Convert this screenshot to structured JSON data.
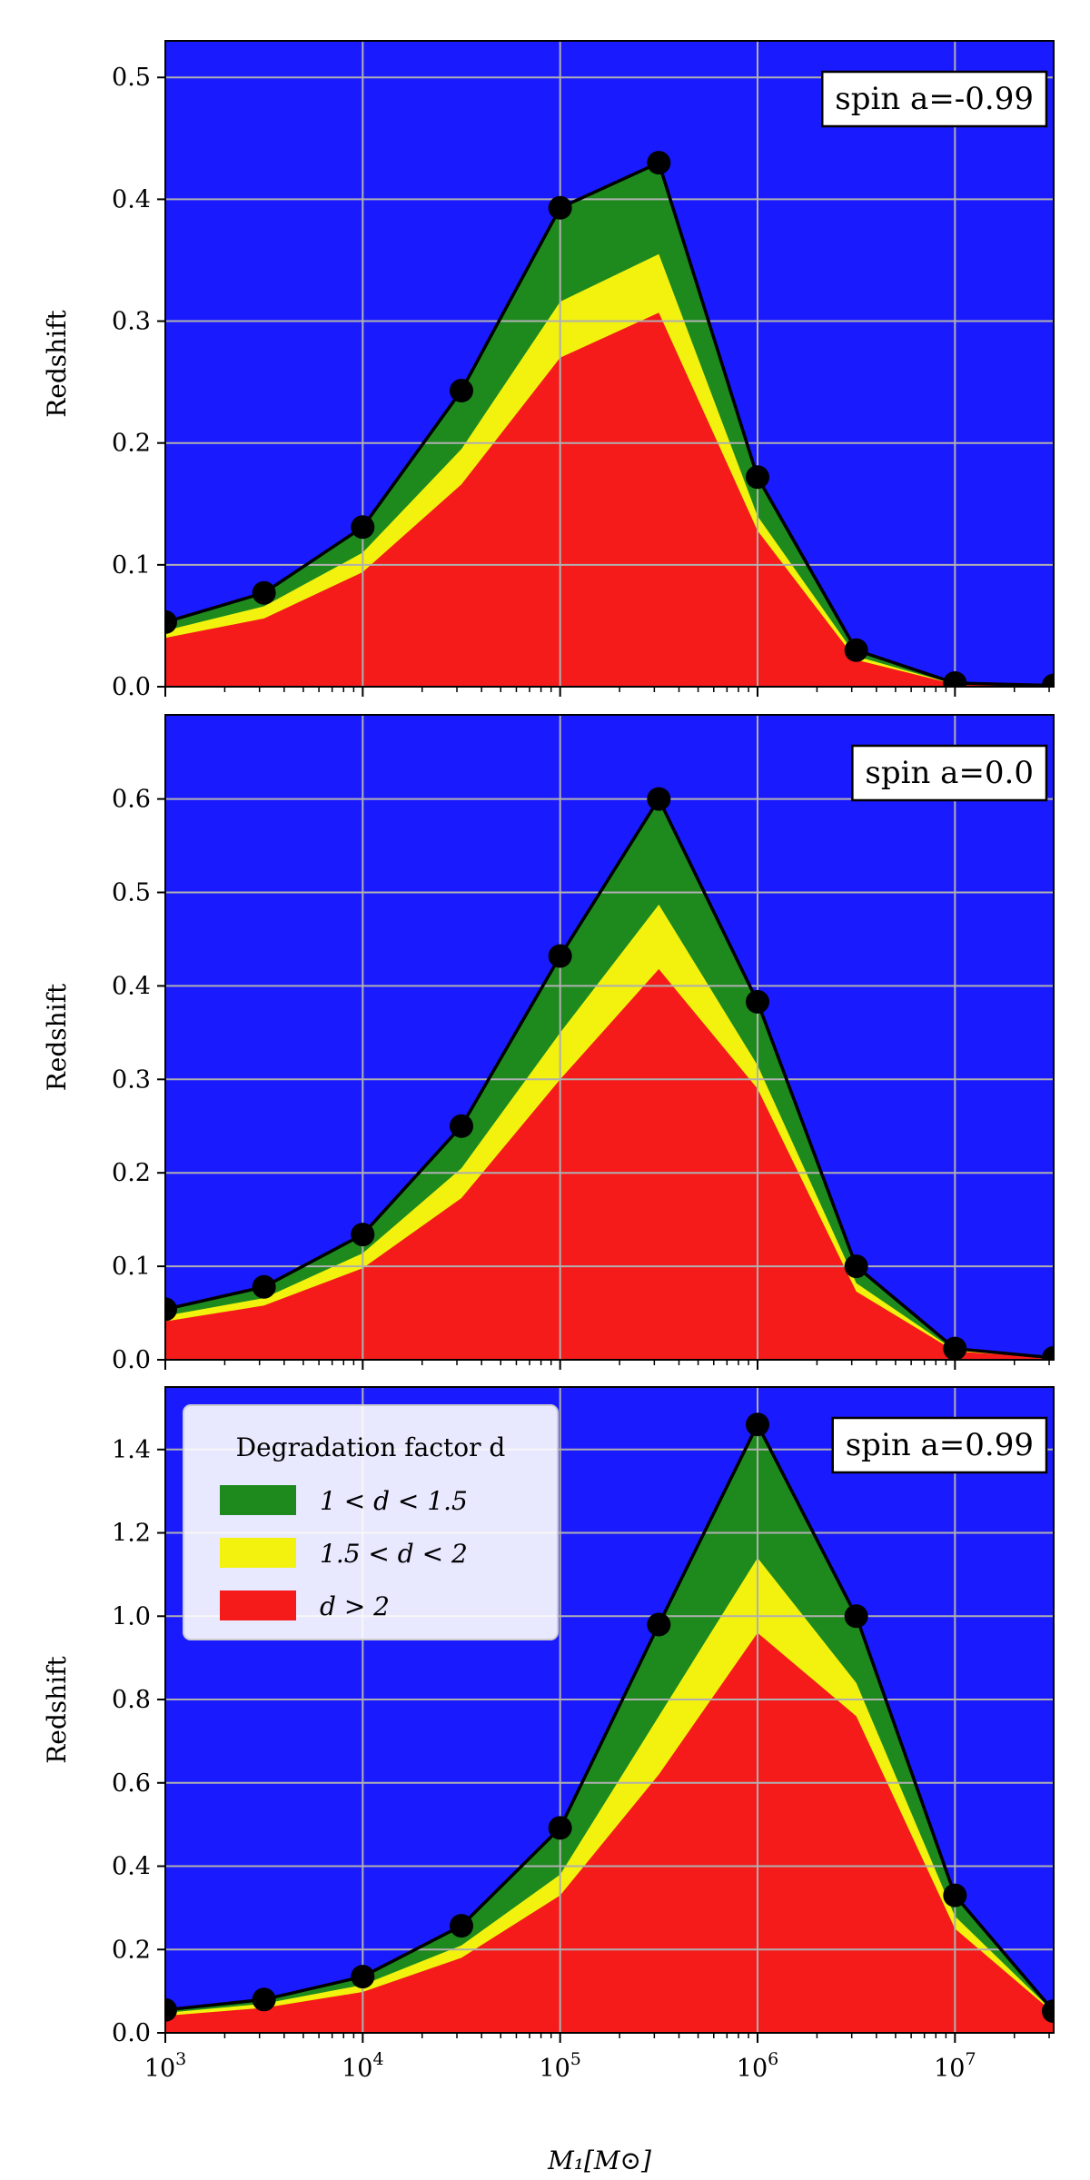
{
  "colors": {
    "background": "#1a1aff",
    "green": "#1e8a1e",
    "yellow": "#f2f20e",
    "red": "#f51b1b",
    "line": "#000000",
    "grid": "#b0b0b0"
  },
  "xlabel": "M₁[M⊙]",
  "ylabel": "Redshift",
  "chart_data": [
    {
      "type": "area",
      "annotation": "spin a=-0.99",
      "xscale": "log",
      "xlim": [
        1000,
        31622776
      ],
      "ylim": [
        0,
        0.53
      ],
      "yticks": [
        "0.0",
        "0.1",
        "0.2",
        "0.3",
        "0.4",
        "0.5"
      ],
      "ytick_values": [
        0,
        0.1,
        0.2,
        0.3,
        0.4,
        0.5
      ],
      "x": [
        1000,
        3162,
        10000,
        31623,
        100000,
        316228,
        1000000,
        3162278,
        10000000,
        31622777
      ],
      "series": [
        {
          "name": "1 < d < 1.5",
          "values": [
            0.053,
            0.077,
            0.131,
            0.243,
            0.393,
            0.43,
            0.172,
            0.03,
            0.003,
            0.001
          ]
        },
        {
          "name": "1.5 < d < 2",
          "values": [
            0.046,
            0.066,
            0.11,
            0.195,
            0.316,
            0.355,
            0.14,
            0.025,
            0.002,
            0.001
          ]
        },
        {
          "name": "d > 2",
          "values": [
            0.04,
            0.056,
            0.094,
            0.166,
            0.27,
            0.307,
            0.128,
            0.022,
            0.002,
            0.001
          ]
        }
      ]
    },
    {
      "type": "area",
      "annotation": "spin a=0.0",
      "xscale": "log",
      "xlim": [
        1000,
        31622776
      ],
      "ylim": [
        0,
        0.69
      ],
      "yticks": [
        "0.0",
        "0.1",
        "0.2",
        "0.3",
        "0.4",
        "0.5",
        "0.6"
      ],
      "ytick_values": [
        0,
        0.1,
        0.2,
        0.3,
        0.4,
        0.5,
        0.6
      ],
      "x": [
        1000,
        3162,
        10000,
        31623,
        100000,
        316228,
        1000000,
        3162278,
        10000000,
        31622777
      ],
      "series": [
        {
          "name": "1 < d < 1.5",
          "values": [
            0.054,
            0.078,
            0.134,
            0.25,
            0.432,
            0.6,
            0.383,
            0.1,
            0.012,
            0.002
          ]
        },
        {
          "name": "1.5 < d < 2",
          "values": [
            0.047,
            0.066,
            0.114,
            0.205,
            0.35,
            0.487,
            0.315,
            0.082,
            0.01,
            0.002
          ]
        },
        {
          "name": "d > 2",
          "values": [
            0.041,
            0.058,
            0.098,
            0.173,
            0.3,
            0.418,
            0.29,
            0.073,
            0.009,
            0.002
          ]
        }
      ]
    },
    {
      "type": "area",
      "annotation": "spin a=0.99",
      "xscale": "log",
      "xlim": [
        1000,
        31622776
      ],
      "ylim": [
        0,
        1.55
      ],
      "yticks": [
        "0.0",
        "0.2",
        "0.4",
        "0.6",
        "0.8",
        "1.0",
        "1.2",
        "1.4"
      ],
      "ytick_values": [
        0,
        0.2,
        0.4,
        0.6,
        0.8,
        1.0,
        1.2,
        1.4
      ],
      "xticks": [
        {
          "base": "10",
          "exp": "3",
          "value": 1000
        },
        {
          "base": "10",
          "exp": "4",
          "value": 10000
        },
        {
          "base": "10",
          "exp": "5",
          "value": 100000
        },
        {
          "base": "10",
          "exp": "6",
          "value": 1000000
        },
        {
          "base": "10",
          "exp": "7",
          "value": 10000000
        }
      ],
      "legend": {
        "title": "Degradation factor d",
        "position": "upper-left",
        "entries": [
          "1 < d < 1.5",
          "1.5 < d < 2",
          "d > 2"
        ]
      },
      "x": [
        1000,
        3162,
        10000,
        31623,
        100000,
        316228,
        1000000,
        3162278,
        10000000,
        31622777
      ],
      "series": [
        {
          "name": "1 < d < 1.5",
          "values": [
            0.055,
            0.08,
            0.135,
            0.257,
            0.492,
            0.98,
            1.46,
            1.0,
            0.33,
            0.052
          ]
        },
        {
          "name": "1.5 < d < 2",
          "values": [
            0.048,
            0.07,
            0.115,
            0.21,
            0.38,
            0.76,
            1.14,
            0.84,
            0.28,
            0.05
          ]
        },
        {
          "name": "d > 2",
          "values": [
            0.041,
            0.06,
            0.098,
            0.18,
            0.33,
            0.62,
            0.96,
            0.76,
            0.25,
            0.048
          ]
        }
      ]
    }
  ]
}
